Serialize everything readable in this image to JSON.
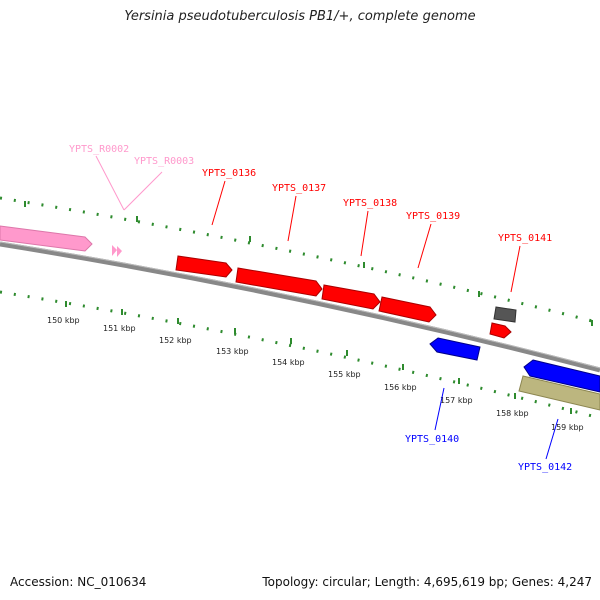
{
  "title": "Yersinia pseudotuberculosis PB1/+, complete genome",
  "footer": {
    "accession": "Accession: NC_010634",
    "summary": "Topology: circular; Length: 4,695,619 bp; Genes: 4,247"
  },
  "colors": {
    "forward_cds": "#ff0000",
    "reverse_cds": "#0000ff",
    "rna": "#ff99cc",
    "other_gray": "#666666",
    "other_olive": "#bcb67f",
    "backbone": "#888888",
    "tick": "#2e8b2e"
  },
  "ticks": [
    "150 kbp",
    "151 kbp",
    "152 kbp",
    "153 kbp",
    "154 kbp",
    "155 kbp",
    "156 kbp",
    "157 kbp",
    "158 kbp",
    "159 kbp"
  ],
  "genes": {
    "rna": [
      "YPTS_R0002",
      "YPTS_R0003"
    ],
    "forward": [
      "YPTS_0136",
      "YPTS_0137",
      "YPTS_0138",
      "YPTS_0139",
      "YPTS_0141"
    ],
    "reverse": [
      "YPTS_0140",
      "YPTS_0142"
    ]
  }
}
